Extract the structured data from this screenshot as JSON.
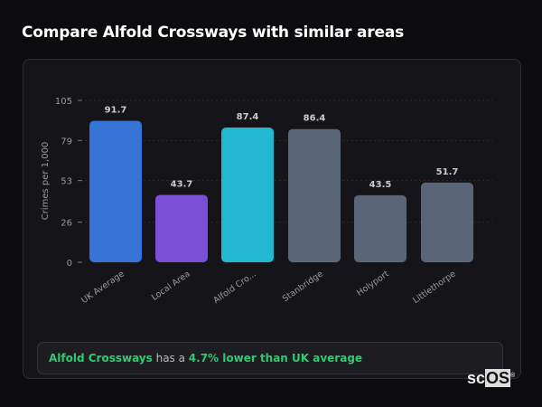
{
  "title": "Compare Alfold Crossways with similar areas",
  "chart_data": {
    "type": "bar",
    "ylabel": "Crimes per 1,000",
    "xlabel": "",
    "ylim": [
      0,
      105
    ],
    "yticks": [
      0,
      26,
      53,
      79,
      105
    ],
    "grid": true,
    "categories": [
      "UK Average",
      "Local Area",
      "Alfold Cro...",
      "Stanbridge",
      "Holyport",
      "Littlethorpe"
    ],
    "values": [
      91.7,
      43.7,
      87.4,
      86.4,
      43.5,
      51.7
    ],
    "value_labels": [
      "91.7",
      "43.7",
      "87.4",
      "86.4",
      "43.5",
      "51.7"
    ],
    "colors": [
      "#3574d6",
      "#7b4fd6",
      "#22b8cf",
      "#5a6577",
      "#5a6577",
      "#5a6577"
    ]
  },
  "footer": {
    "area": "Alfold Crossways",
    "middle": " has a ",
    "comparison": "4.7% lower than UK average"
  },
  "logo": {
    "text_sc": "sc",
    "text_os": "OS",
    "mark": "®"
  }
}
